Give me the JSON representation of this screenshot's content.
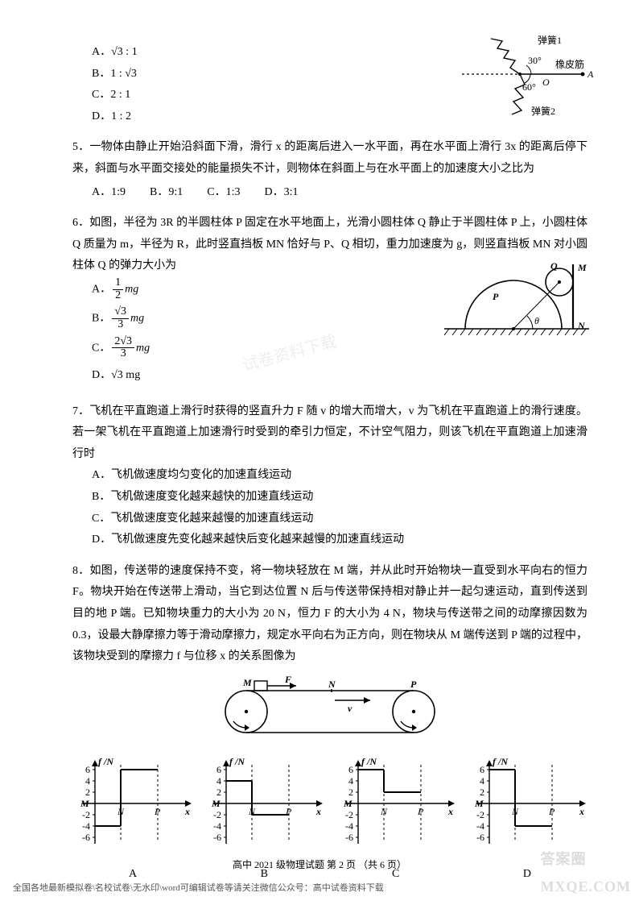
{
  "q4": {
    "options": [
      {
        "label": "A．",
        "val": "√3 : 1"
      },
      {
        "label": "B．",
        "val": "1 : √3"
      },
      {
        "label": "C．",
        "val": "2 : 1"
      },
      {
        "label": "D．",
        "val": "1 : 2"
      }
    ],
    "diagram": {
      "spring1": "弹簧1",
      "rubber": "橡皮筋",
      "spring2": "弹簧2",
      "O": "O",
      "A": "A",
      "angle30": "30°",
      "angle60": "60°",
      "colors": {
        "line": "#000",
        "zig": "#000"
      }
    }
  },
  "q5": {
    "num": "5．",
    "text": "一物体由静止开始沿斜面下滑，滑行 x 的距离后进入一水平面，再在水平面上滑行 3x 的距离后停下来，斜面与水平面交接处的能量损失不计，则物体在斜面上与在水平面上的加速度大小之比为",
    "options": [
      {
        "label": "A．",
        "val": "1:9"
      },
      {
        "label": "B．",
        "val": "9:1"
      },
      {
        "label": "C．",
        "val": "1:3"
      },
      {
        "label": "D．",
        "val": "3:1"
      }
    ]
  },
  "q6": {
    "num": "6．",
    "text": "如图，半径为 3R 的半圆柱体 P 固定在水平地面上，光滑小圆柱体 Q 静止于半圆柱体 P 上，小圆柱体 Q 质量为 m，半径为 R，此时竖直挡板 MN 恰好与 P、Q 相切，重力加速度为 g，则竖直挡板 MN 对小圆柱体 Q 的弹力大小为",
    "options": {
      "A": {
        "label": "A．",
        "frac_num": "1",
        "frac_den": "2",
        "suffix": "mg"
      },
      "B": {
        "label": "B．",
        "frac_num": "√3",
        "frac_den": "3",
        "suffix": "mg"
      },
      "C": {
        "label": "C．",
        "frac_num": "2√3",
        "frac_den": "3",
        "suffix": "mg"
      },
      "D": {
        "label": "D．",
        "val": "√3 mg"
      }
    },
    "diagram": {
      "P": "P",
      "Q": "Q",
      "M": "M",
      "N": "N",
      "theta": "θ"
    }
  },
  "q7": {
    "num": "7．",
    "text": "飞机在平直跑道上滑行时获得的竖直升力 F 随 v 的增大而增大，v 为飞机在平直跑道上的滑行速度。若一架飞机在平直跑道上加速滑行时受到的牵引力恒定，不计空气阻力，则该飞机在平直跑道上加速滑行时",
    "options": [
      {
        "label": "A．",
        "val": "飞机做速度均匀变化的加速直线运动"
      },
      {
        "label": "B．",
        "val": "飞机做速度变化越来越快的加速直线运动"
      },
      {
        "label": "C．",
        "val": "飞机做速度变化越来越慢的加速直线运动"
      },
      {
        "label": "D．",
        "val": "飞机做速度先变化越来越快后变化越来越慢的加速直线运动"
      }
    ]
  },
  "q8": {
    "num": "8．",
    "text": "如图，传送带的速度保持不变，将一物块轻放在 M 端，并从此时开始物块一直受到水平向右的恒力 F。物块开始在传送带上滑动，当它到达位置 N 后与传送带保持相对静止并一起匀速运动，直到传送到目的地 P 端。已知物块重力的大小为 20 N，恒力 F 的大小为 4 N，物块与传送带之间的动摩擦因数为 0.3，设最大静摩擦力等于滑动摩擦力，规定水平向右为正方向，则在物块从 M 端传送到 P 端的过程中，该物块受到的摩擦力 f 与位移 x 的关系图像为",
    "belt": {
      "M": "M",
      "N": "N",
      "P": "P",
      "F": "F",
      "v": "v"
    },
    "graphs": {
      "ylabel": "f /N",
      "xlabel": "x",
      "yticks": [
        6,
        4,
        2,
        -2,
        -4,
        -6
      ],
      "N": "N",
      "P": "P",
      "M": "M",
      "captions": [
        "A",
        "B",
        "C",
        "D"
      ],
      "colors": {
        "axis": "#000",
        "dash": "#000",
        "line": "#000"
      },
      "data": {
        "A": {
          "seg1_y": -4,
          "seg2_y": 6,
          "n_x": 32,
          "p_x": 78
        },
        "B": {
          "seg1_y": 4,
          "seg2_y": -2,
          "n_x": 32,
          "p_x": 78
        },
        "C": {
          "seg1_y": 6,
          "seg2_y": 2,
          "n_x": 32,
          "p_x": 78
        },
        "D": {
          "seg1_y": 6,
          "seg2_y": -4,
          "n_x": 32,
          "p_x": 78
        }
      }
    }
  },
  "footer": "高中 2021 级物理试题 第 2 页 （共 6 页）",
  "bottom_note": "全国各地最新模拟卷\\名校试卷\\无水印\\word可编辑试卷等请关注微信公众号：高中试卷资料下载",
  "watermark_corner": "答案圈\nMXQE.COM",
  "watermark_mid": "试卷资料下载"
}
